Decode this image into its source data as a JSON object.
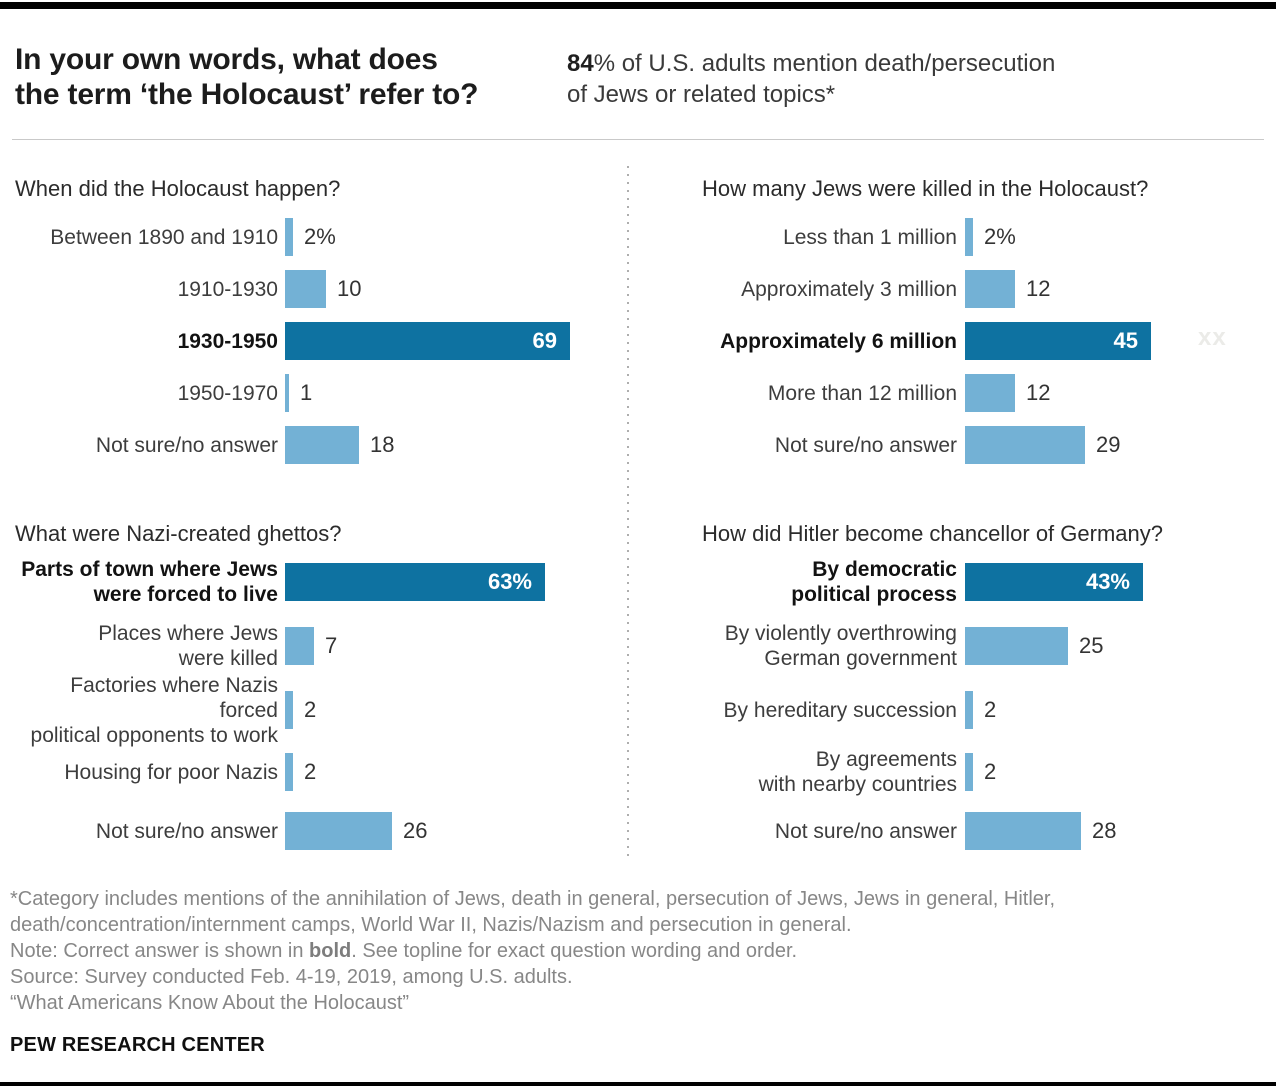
{
  "header": {
    "title_line1": "In your own words, what does",
    "title_line2": "the term ‘the Holocaust’ refer to?",
    "stat_bold": "84",
    "stat_line1_rest": "% of U.S. adults mention death/persecution",
    "stat_line2": "of Jews or related topics*"
  },
  "faint_mark": "xx",
  "chart_data": [
    {
      "type": "bar",
      "title": "When did the Holocaust happen?",
      "xlim": [
        0,
        69
      ],
      "categories": [
        "Between 1890 and 1910",
        "1910-1930",
        "1930-1950",
        "1950-1970",
        "Not sure/no answer"
      ],
      "values": [
        2,
        10,
        69,
        1,
        18
      ],
      "rows": [
        {
          "label_lines": [
            "Between 1890 and 1910"
          ],
          "value": 2,
          "display": "2%",
          "correct": false,
          "value_inside": false
        },
        {
          "label_lines": [
            "1910-1930"
          ],
          "value": 10,
          "display": "10",
          "correct": false,
          "value_inside": false
        },
        {
          "label_lines": [
            "1930-1950"
          ],
          "value": 69,
          "display": "69",
          "correct": true,
          "value_inside": true
        },
        {
          "label_lines": [
            "1950-1970"
          ],
          "value": 1,
          "display": "1",
          "correct": false,
          "value_inside": false
        },
        {
          "label_lines": [
            "Not sure/no answer"
          ],
          "value": 18,
          "display": "18",
          "correct": false,
          "value_inside": false
        }
      ]
    },
    {
      "type": "bar",
      "title": "How many Jews were killed in the Holocaust?",
      "xlim": [
        0,
        45
      ],
      "categories": [
        "Less than 1 million",
        "Approximately 3 million",
        "Approximately 6 million",
        "More than 12 million",
        "Not sure/no answer"
      ],
      "values": [
        2,
        12,
        45,
        12,
        29
      ],
      "rows": [
        {
          "label_lines": [
            "Less than 1 million"
          ],
          "value": 2,
          "display": "2%",
          "correct": false,
          "value_inside": false
        },
        {
          "label_lines": [
            "Approximately 3 million"
          ],
          "value": 12,
          "display": "12",
          "correct": false,
          "value_inside": false
        },
        {
          "label_lines": [
            "Approximately 6 million"
          ],
          "value": 45,
          "display": "45",
          "correct": true,
          "value_inside": true
        },
        {
          "label_lines": [
            "More than 12 million"
          ],
          "value": 12,
          "display": "12",
          "correct": false,
          "value_inside": false
        },
        {
          "label_lines": [
            "Not sure/no answer"
          ],
          "value": 29,
          "display": "29",
          "correct": false,
          "value_inside": false
        }
      ]
    },
    {
      "type": "bar",
      "title": "What were Nazi-created ghettos?",
      "xlim": [
        0,
        63
      ],
      "categories": [
        "Parts of town where Jews were forced to live",
        "Places where Jews were killed",
        "Factories where Nazis forced political opponents to work",
        "Housing for poor Nazis",
        "Not sure/no answer"
      ],
      "values": [
        63,
        7,
        2,
        2,
        26
      ],
      "rows": [
        {
          "label_lines": [
            "Parts of town where Jews",
            "were forced to live"
          ],
          "value": 63,
          "display": "63%",
          "correct": true,
          "value_inside": true
        },
        {
          "label_lines": [
            "Places where Jews",
            "were killed"
          ],
          "value": 7,
          "display": "7",
          "correct": false,
          "value_inside": false
        },
        {
          "label_lines": [
            "Factories where Nazis forced",
            "political opponents to work"
          ],
          "value": 2,
          "display": "2",
          "correct": false,
          "value_inside": false
        },
        {
          "label_lines": [
            "Housing for poor Nazis"
          ],
          "value": 2,
          "display": "2",
          "correct": false,
          "value_inside": false
        },
        {
          "label_lines": [
            "Not sure/no answer"
          ],
          "value": 26,
          "display": "26",
          "correct": false,
          "value_inside": false
        }
      ]
    },
    {
      "type": "bar",
      "title": "How did Hitler become chancellor of Germany?",
      "xlim": [
        0,
        43
      ],
      "categories": [
        "By democratic political process",
        "By violently overthrowing German government",
        "By hereditary succession",
        "By agreements with nearby countries",
        "Not sure/no answer"
      ],
      "values": [
        43,
        25,
        2,
        2,
        28
      ],
      "rows": [
        {
          "label_lines": [
            "By democratic",
            "political process"
          ],
          "value": 43,
          "display": "43%",
          "correct": true,
          "value_inside": true
        },
        {
          "label_lines": [
            "By violently overthrowing",
            "German government"
          ],
          "value": 25,
          "display": "25",
          "correct": false,
          "value_inside": false
        },
        {
          "label_lines": [
            "By hereditary succession"
          ],
          "value": 2,
          "display": "2",
          "correct": false,
          "value_inside": false
        },
        {
          "label_lines": [
            "By agreements",
            "with nearby countries"
          ],
          "value": 2,
          "display": "2",
          "correct": false,
          "value_inside": false
        },
        {
          "label_lines": [
            "Not sure/no answer"
          ],
          "value": 28,
          "display": "28",
          "correct": false,
          "value_inside": false
        }
      ]
    }
  ],
  "footer": {
    "lines": [
      {
        "text": "*Category includes mentions of the annihilation of Jews, death in general, persecution of Jews, Jews in general, Hitler,"
      },
      {
        "text": "death/concentration/internment camps, World War II, Nazis/Nazism and persecution in general."
      },
      {
        "prefix": "Note: Correct answer is shown in ",
        "bold": "bold",
        "suffix": ". See topline for exact question wording and order."
      },
      {
        "text": "Source: Survey conducted Feb. 4-19, 2019, among U.S. adults."
      },
      {
        "text": "“What Americans Know About the Holocaust”"
      }
    ],
    "brand": "PEW RESEARCH CENTER"
  },
  "colors": {
    "dark_blue": "#0e72a1",
    "light_blue": "#73b1d5"
  }
}
